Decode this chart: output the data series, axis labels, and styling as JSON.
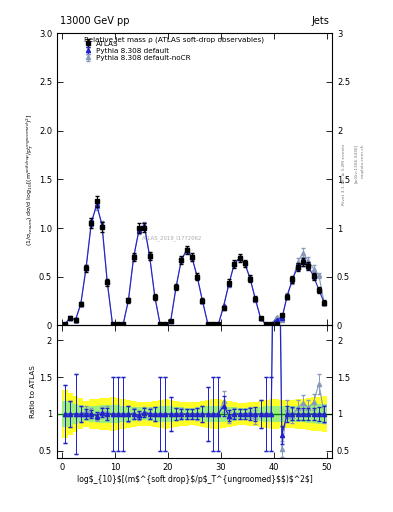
{
  "title_left": "13000 GeV pp",
  "title_right": "Jets",
  "panel1_ylabel": "(1/σ$_{resum}$) dσ/d log$_{10}$[(m$^{soft drop}$/p$_T^{ungroomed}$)$^2$]",
  "panel2_ylabel": "Ratio to ATLAS",
  "xlabel": "log$_{10}$[(m$^{soft drop}$/p$_T^{ungroomed}$$)$^2$]",
  "inner_title": "Relative jet mass ρ (ATLAS soft-drop observables)",
  "watermark": "ATLAS_2019_I1772062",
  "right_label1": "Rivet 3.1.10; ≥ 3.2M events",
  "right_label2": "[arXiv:1306.3436]",
  "right_label3": "mcplots.cern.ch",
  "xlim": [
    -1,
    51
  ],
  "xticks": [
    0,
    10,
    20,
    30,
    40,
    50
  ],
  "xtick_labels": [
    "0",
    "10",
    "20",
    "30",
    "40",
    "50"
  ],
  "panel1_ylim": [
    0,
    3.0
  ],
  "panel1_yticks": [
    0,
    0.5,
    1.0,
    1.5,
    2.0,
    2.5,
    3.0
  ],
  "panel2_ylim": [
    0.4,
    2.2
  ],
  "panel2_yticks": [
    0.5,
    1.0,
    1.5,
    2.0
  ],
  "color_atlas": "#000000",
  "color_pythia_default": "#2222cc",
  "color_pythia_nocr": "#8899bb",
  "color_band_yellow": "#ffff00",
  "color_band_green": "#88ee88",
  "atlas_legend": "ATLAS",
  "pythia_default_legend": "Pythia 8.308 default",
  "pythia_nocr_legend": "Pythia 8.308 default-noCR"
}
